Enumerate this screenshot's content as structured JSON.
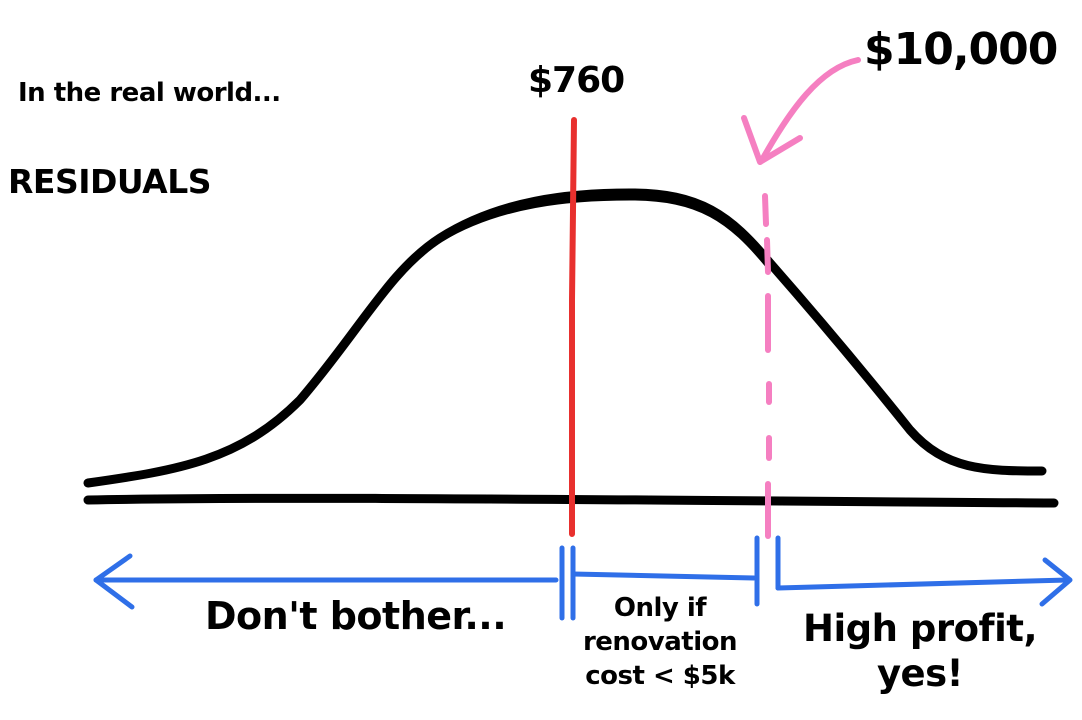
{
  "subtitle": "In the real world...",
  "axis_title": "RESIDUALS",
  "markers": {
    "red": {
      "label": "$760",
      "color": "#e8302e"
    },
    "pink": {
      "label": "$10,000",
      "color": "#f57fc1"
    }
  },
  "zones": {
    "left": "Don't bother...",
    "middle": [
      "Only if",
      "renovation",
      "cost < $5k"
    ],
    "right": [
      "High profit,",
      "yes!"
    ]
  },
  "colors": {
    "curve": "#000000",
    "baseline": "#000000",
    "arrows": "#2f6fe8"
  }
}
